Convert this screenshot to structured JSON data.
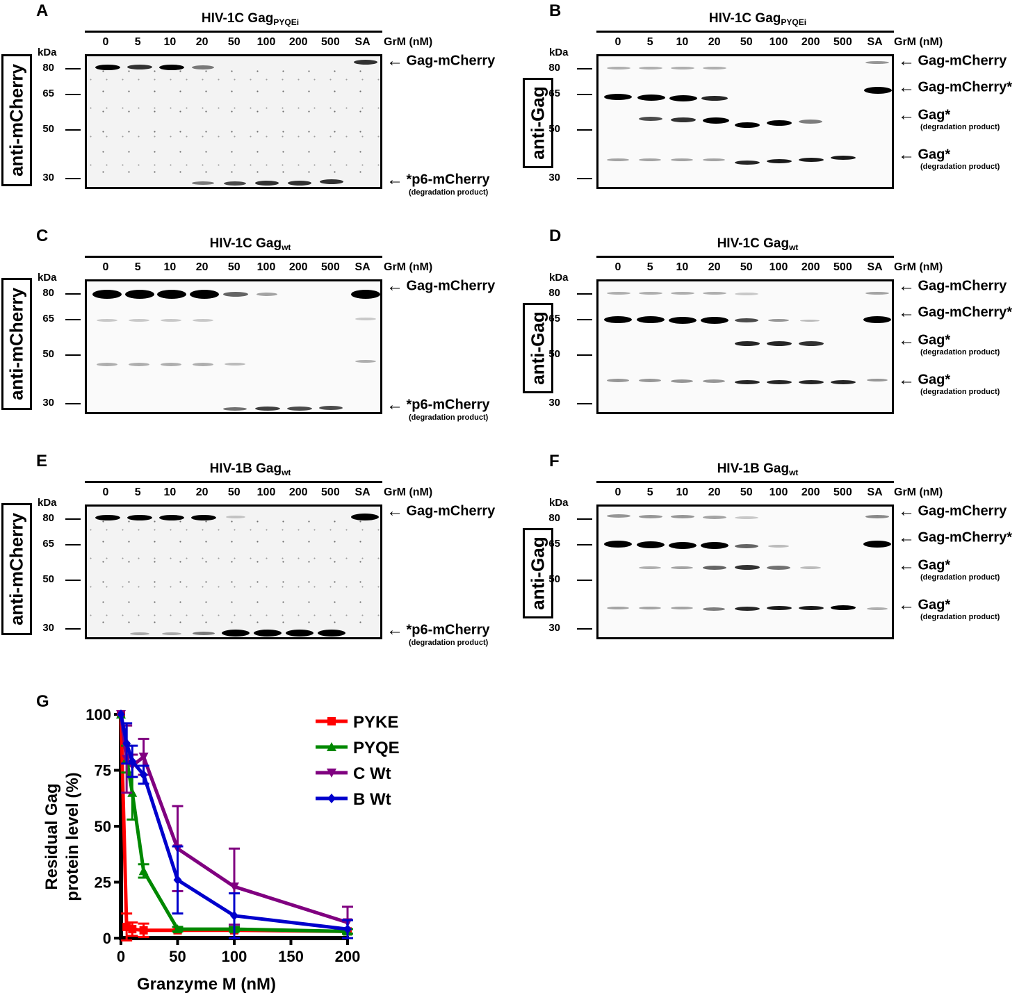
{
  "panels": {
    "A": {
      "letter": "A",
      "title_main": "HIV-1C Gag",
      "title_sub": "PYQEi",
      "antibody": "anti-mCherry"
    },
    "B": {
      "letter": "B",
      "title_main": "HIV-1C Gag",
      "title_sub": "PYQEi",
      "antibody": "anti-Gag"
    },
    "C": {
      "letter": "C",
      "title_main": "HIV-1C Gag",
      "title_sub": "wt",
      "antibody": "anti-mCherry"
    },
    "D": {
      "letter": "D",
      "title_main": "HIV-1C Gag",
      "title_sub": "wt",
      "antibody": "anti-Gag"
    },
    "E": {
      "letter": "E",
      "title_main": "HIV-1B Gag",
      "title_sub": "wt",
      "antibody": "anti-mCherry"
    },
    "F": {
      "letter": "F",
      "title_main": "HIV-1B Gag",
      "title_sub": "wt",
      "antibody": "anti-Gag"
    },
    "G": {
      "letter": "G"
    }
  },
  "lanes": [
    "0",
    "5",
    "10",
    "20",
    "50",
    "100",
    "200",
    "500",
    "SA"
  ],
  "lane_unit": "GrM (nM)",
  "kda_label": "kDa",
  "mw_markers": [
    "80",
    "65",
    "50",
    "30"
  ],
  "labels": {
    "gag_mcherry": "Gag-mCherry",
    "gag_mcherry_star": "Gag-mCherry*",
    "gag_star": "Gag*",
    "p6_mcherry": "*p6-mCherry",
    "degradation": "(degradation product)",
    "arrow": "←"
  },
  "chart_data": {
    "type": "line",
    "title": "",
    "xlabel": "Granzyme M (nM)",
    "ylabel": "Residual Gag protein level (%)",
    "ylabel_lines": [
      "Residual Gag",
      "protein level (%)"
    ],
    "xlim": [
      0,
      200
    ],
    "ylim": [
      0,
      100
    ],
    "xticks": [
      "0",
      "50",
      "100",
      "150",
      "200"
    ],
    "yticks": [
      "0",
      "25",
      "50",
      "75",
      "100"
    ],
    "legend_position": "top-right",
    "series": [
      {
        "name": "PYKE",
        "color": "#ff0000",
        "marker": "square",
        "x": [
          0,
          5,
          10,
          20,
          50,
          100,
          200
        ],
        "y": [
          100,
          5,
          4,
          3.5,
          3.5,
          3.5,
          3
        ],
        "err": [
          0,
          6,
          3,
          3,
          0,
          0,
          0
        ]
      },
      {
        "name": "PYQE",
        "color": "#008800",
        "marker": "triangle-up",
        "x": [
          0,
          5,
          10,
          20,
          50,
          100,
          200
        ],
        "y": [
          100,
          80,
          65,
          30,
          4,
          4,
          3
        ],
        "err": [
          0,
          6,
          12,
          3,
          1,
          1,
          1
        ]
      },
      {
        "name": "C Wt",
        "color": "#800080",
        "marker": "triangle-down",
        "x": [
          0,
          5,
          10,
          20,
          50,
          100,
          200
        ],
        "y": [
          100,
          80,
          77,
          81,
          40,
          23,
          7
        ],
        "err": [
          0,
          15,
          5,
          8,
          19,
          17,
          7
        ]
      },
      {
        "name": "B Wt",
        "color": "#0000cc",
        "marker": "diamond",
        "x": [
          0,
          5,
          10,
          20,
          50,
          100,
          200
        ],
        "y": [
          100,
          87,
          79,
          73,
          26,
          10,
          4
        ],
        "err": [
          0,
          9,
          7,
          4,
          15,
          10,
          4
        ]
      }
    ]
  }
}
